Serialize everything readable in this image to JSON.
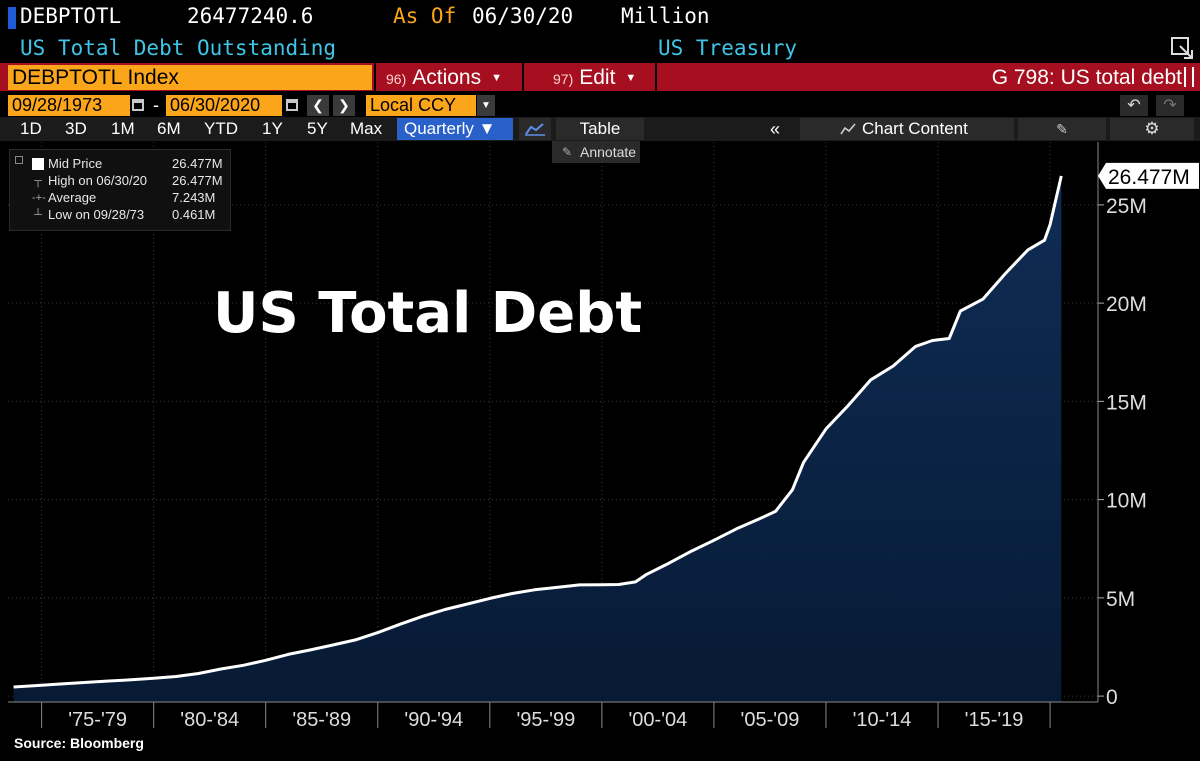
{
  "header": {
    "ticker": "DEBPTOTL",
    "last_value": "26477240.6",
    "as_of_label": "As Of",
    "as_of_date": "06/30/20",
    "units": "Million",
    "description": "US Total Debt Outstanding",
    "source_name": "US Treasury"
  },
  "toolbar": {
    "security": "DEBPTOTL Index",
    "actions_num": "96)",
    "actions_label": "Actions",
    "edit_num": "97)",
    "edit_label": "Edit",
    "graph_title": "G 798: US total debt",
    "start_date": "09/28/1973",
    "end_date": "06/30/2020",
    "currency": "Local CCY",
    "ranges": [
      "1D",
      "3D",
      "1M",
      "6M",
      "YTD",
      "1Y",
      "5Y",
      "Max"
    ],
    "frequency": "Quarterly ▼",
    "table_label": "Table",
    "chart_content_label": "Chart Content",
    "annotate_label": "Annotate"
  },
  "legend": {
    "rows": [
      {
        "label": "Mid Price",
        "value": "26.477M"
      },
      {
        "label": "High on 06/30/20",
        "value": "26.477M"
      },
      {
        "label": "Average",
        "value": "7.243M"
      },
      {
        "label": "Low on 09/28/73",
        "value": "0.461M"
      }
    ]
  },
  "overlay_title": "US Total Debt",
  "last_value_tag": "26.477M",
  "source_note": "Source: Bloomberg",
  "colors": {
    "background": "#000000",
    "area_fill_top": "#0f2d55",
    "area_fill_bottom": "#071a35",
    "line": "#ffffff",
    "accent_orange": "#fba51a",
    "accent_red": "#a50f1f",
    "cyan_text": "#3ec6e6",
    "quarterly_blue": "#2a60c9"
  },
  "chart_data": {
    "type": "area",
    "title": "US Total Debt",
    "series": [
      {
        "name": "Mid Price",
        "x": [
          1973.75,
          1975,
          1976,
          1977,
          1978,
          1979,
          1980,
          1981,
          1982,
          1983,
          1984,
          1985,
          1986,
          1987,
          1988,
          1989,
          1990,
          1991,
          1992,
          1993,
          1994,
          1995,
          1996,
          1997,
          1998,
          1999,
          2000,
          2000.75,
          2001.5,
          2002,
          2003,
          2004,
          2005,
          2006,
          2007,
          2007.75,
          2008.5,
          2009,
          2010,
          2011,
          2012,
          2013,
          2014,
          2014.75,
          2015.5,
          2016,
          2017,
          2018,
          2019,
          2019.75,
          2020,
          2020.5
        ],
        "y": [
          0.461,
          0.55,
          0.63,
          0.7,
          0.77,
          0.83,
          0.91,
          1.0,
          1.15,
          1.38,
          1.57,
          1.82,
          2.12,
          2.35,
          2.6,
          2.86,
          3.23,
          3.66,
          4.06,
          4.41,
          4.69,
          4.97,
          5.22,
          5.41,
          5.53,
          5.66,
          5.67,
          5.68,
          5.81,
          6.2,
          6.77,
          7.38,
          7.93,
          8.51,
          9.01,
          9.4,
          10.5,
          11.9,
          13.6,
          14.8,
          16.1,
          16.8,
          17.8,
          18.1,
          18.2,
          19.6,
          20.2,
          21.5,
          22.7,
          23.2,
          24.0,
          26.477
        ]
      }
    ],
    "y_ticks": [
      "0",
      "5M",
      "10M",
      "15M",
      "20M",
      "25M"
    ],
    "y_tick_values": [
      0,
      5,
      10,
      15,
      20,
      25
    ],
    "ylim": [
      -0.3,
      28.2
    ],
    "x_ticks": [
      "'75-'79",
      "'80-'84",
      "'85-'89",
      "'90-'94",
      "'95-'99",
      "'00-'04",
      "'05-'09",
      "'10-'14",
      "'15-'19"
    ],
    "x_tick_centers": [
      1977.5,
      1982.5,
      1987.5,
      1992.5,
      1997.5,
      2002.5,
      2007.5,
      2012.5,
      2017.5
    ],
    "x_tick_bounds": [
      1975,
      1980,
      1985,
      1990,
      1995,
      2000,
      2005,
      2010,
      2015,
      2020
    ],
    "xlim": [
      1973.5,
      2020.8
    ],
    "grid": true,
    "legend_position": "top-left"
  }
}
